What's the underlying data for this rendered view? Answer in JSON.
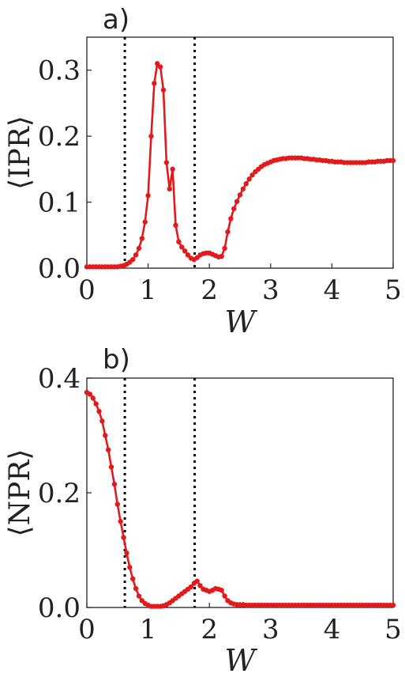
{
  "chart_data": [
    {
      "type": "line",
      "panel_label": "a)",
      "xlabel": "W",
      "ylabel": "⟨IPR⟩",
      "xlim": [
        0,
        5
      ],
      "ylim": [
        0,
        0.35
      ],
      "xticks": [
        0,
        1,
        2,
        3,
        4,
        5
      ],
      "xtick_labels": [
        "0",
        "1",
        "2",
        "3",
        "4",
        "5"
      ],
      "yticks": [
        0.0,
        0.1,
        0.2,
        0.3
      ],
      "ytick_labels": [
        "0.0",
        "0.1",
        "0.2",
        "0.3"
      ],
      "grid": false,
      "vlines": [
        0.62,
        1.76
      ],
      "color": "#e31a1c",
      "x": [
        0.0,
        0.05,
        0.1,
        0.15,
        0.2,
        0.25,
        0.3,
        0.35,
        0.4,
        0.45,
        0.5,
        0.55,
        0.6,
        0.65,
        0.7,
        0.75,
        0.8,
        0.85,
        0.9,
        0.95,
        1.0,
        1.05,
        1.1,
        1.15,
        1.2,
        1.25,
        1.3,
        1.35,
        1.4,
        1.45,
        1.5,
        1.55,
        1.6,
        1.65,
        1.7,
        1.75,
        1.8,
        1.85,
        1.9,
        1.95,
        2.0,
        2.05,
        2.1,
        2.15,
        2.2,
        2.25,
        2.3,
        2.35,
        2.4,
        2.45,
        2.5,
        2.55,
        2.6,
        2.65,
        2.7,
        2.75,
        2.8,
        2.85,
        2.9,
        2.95,
        3.0,
        3.05,
        3.1,
        3.15,
        3.2,
        3.25,
        3.3,
        3.35,
        3.4,
        3.45,
        3.5,
        3.55,
        3.6,
        3.65,
        3.7,
        3.75,
        3.8,
        3.85,
        3.9,
        3.95,
        4.0,
        4.05,
        4.1,
        4.15,
        4.2,
        4.25,
        4.3,
        4.35,
        4.4,
        4.45,
        4.5,
        4.55,
        4.6,
        4.65,
        4.7,
        4.75,
        4.8,
        4.85,
        4.9,
        4.95,
        5.0
      ],
      "y": [
        0.002,
        0.002,
        0.002,
        0.002,
        0.002,
        0.002,
        0.002,
        0.002,
        0.002,
        0.002,
        0.002,
        0.003,
        0.004,
        0.006,
        0.009,
        0.013,
        0.02,
        0.03,
        0.045,
        0.07,
        0.11,
        0.2,
        0.28,
        0.31,
        0.305,
        0.27,
        0.16,
        0.12,
        0.15,
        0.065,
        0.04,
        0.032,
        0.026,
        0.02,
        0.015,
        0.013,
        0.016,
        0.02,
        0.022,
        0.023,
        0.023,
        0.021,
        0.019,
        0.017,
        0.018,
        0.03,
        0.055,
        0.075,
        0.09,
        0.101,
        0.111,
        0.12,
        0.128,
        0.135,
        0.141,
        0.146,
        0.15,
        0.154,
        0.157,
        0.159,
        0.161,
        0.163,
        0.164,
        0.165,
        0.166,
        0.166,
        0.167,
        0.167,
        0.167,
        0.167,
        0.167,
        0.166,
        0.166,
        0.165,
        0.165,
        0.164,
        0.164,
        0.163,
        0.163,
        0.162,
        0.162,
        0.161,
        0.161,
        0.161,
        0.16,
        0.16,
        0.16,
        0.16,
        0.16,
        0.16,
        0.16,
        0.16,
        0.161,
        0.161,
        0.161,
        0.162,
        0.162,
        0.162,
        0.163,
        0.163,
        0.163
      ]
    },
    {
      "type": "line",
      "panel_label": "b)",
      "xlabel": "W",
      "ylabel": "⟨NPR⟩",
      "xlim": [
        0,
        5
      ],
      "ylim": [
        0,
        0.4
      ],
      "xticks": [
        0,
        1,
        2,
        3,
        4,
        5
      ],
      "xtick_labels": [
        "0",
        "1",
        "2",
        "3",
        "4",
        "5"
      ],
      "yticks": [
        0.0,
        0.2,
        0.4
      ],
      "ytick_labels": [
        "0.0",
        "0.2",
        "0.4"
      ],
      "grid": false,
      "vlines": [
        0.62,
        1.76
      ],
      "color": "#e31a1c",
      "x": [
        0.0,
        0.05,
        0.1,
        0.15,
        0.2,
        0.25,
        0.3,
        0.35,
        0.4,
        0.45,
        0.5,
        0.55,
        0.6,
        0.65,
        0.7,
        0.75,
        0.8,
        0.85,
        0.9,
        0.95,
        1.0,
        1.05,
        1.1,
        1.15,
        1.2,
        1.25,
        1.3,
        1.35,
        1.4,
        1.45,
        1.5,
        1.55,
        1.6,
        1.65,
        1.7,
        1.75,
        1.8,
        1.85,
        1.9,
        1.95,
        2.0,
        2.05,
        2.1,
        2.15,
        2.2,
        2.25,
        2.3,
        2.35,
        2.4,
        2.45,
        2.5,
        2.55,
        2.6,
        2.65,
        2.7,
        2.75,
        2.8,
        2.85,
        2.9,
        2.95,
        3.0,
        3.05,
        3.1,
        3.15,
        3.2,
        3.25,
        3.3,
        3.35,
        3.4,
        3.45,
        3.5,
        3.55,
        3.6,
        3.65,
        3.7,
        3.75,
        3.8,
        3.85,
        3.9,
        3.95,
        4.0,
        4.05,
        4.1,
        4.15,
        4.2,
        4.25,
        4.3,
        4.35,
        4.4,
        4.45,
        4.5,
        4.55,
        4.6,
        4.65,
        4.7,
        4.75,
        4.8,
        4.85,
        4.9,
        4.95,
        5.0
      ],
      "y": [
        0.375,
        0.372,
        0.365,
        0.355,
        0.342,
        0.325,
        0.3,
        0.275,
        0.245,
        0.215,
        0.18,
        0.15,
        0.122,
        0.095,
        0.07,
        0.05,
        0.033,
        0.02,
        0.012,
        0.007,
        0.004,
        0.002,
        0.002,
        0.002,
        0.002,
        0.003,
        0.005,
        0.008,
        0.012,
        0.016,
        0.02,
        0.024,
        0.028,
        0.032,
        0.036,
        0.042,
        0.046,
        0.038,
        0.032,
        0.03,
        0.028,
        0.03,
        0.033,
        0.032,
        0.03,
        0.02,
        0.012,
        0.008,
        0.006,
        0.005,
        0.005,
        0.005,
        0.004,
        0.004,
        0.004,
        0.004,
        0.004,
        0.004,
        0.004,
        0.004,
        0.004,
        0.004,
        0.004,
        0.004,
        0.004,
        0.004,
        0.004,
        0.004,
        0.004,
        0.004,
        0.004,
        0.004,
        0.004,
        0.004,
        0.004,
        0.004,
        0.004,
        0.004,
        0.004,
        0.004,
        0.004,
        0.004,
        0.004,
        0.004,
        0.004,
        0.004,
        0.004,
        0.004,
        0.004,
        0.004,
        0.004,
        0.004,
        0.004,
        0.004,
        0.004,
        0.004,
        0.004,
        0.004,
        0.004,
        0.004,
        0.004
      ]
    }
  ]
}
